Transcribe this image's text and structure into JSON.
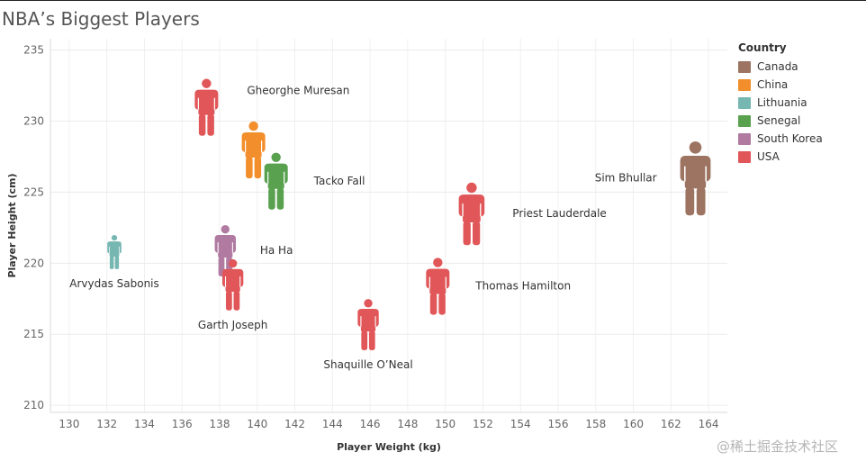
{
  "chart_data": {
    "type": "scatter",
    "title": "NBA’s Biggest Players",
    "xlabel": "Player Weight (kg)",
    "ylabel": "Player Height (cm)",
    "xlim": [
      129,
      165
    ],
    "ylim": [
      209.5,
      235.8
    ],
    "xticks": [
      130,
      132,
      134,
      136,
      138,
      140,
      142,
      144,
      146,
      148,
      150,
      152,
      154,
      156,
      158,
      160,
      162,
      164
    ],
    "yticks": [
      210,
      215,
      220,
      225,
      230,
      235
    ],
    "grid": true,
    "legend_position": "right",
    "legend_title": "Country",
    "categories": [
      "Canada",
      "China",
      "Lithuania",
      "Senegal",
      "South Korea",
      "USA"
    ],
    "colors": {
      "Canada": "#9c7461",
      "China": "#f28e2b",
      "Lithuania": "#76b7b2",
      "Senegal": "#59a14f",
      "South Korea": "#b07aa1",
      "USA": "#e15759"
    },
    "points": [
      {
        "name": "Gheorghe Muresan",
        "country": "USA",
        "x": 137.3,
        "y": 231.0,
        "size": 1.0,
        "label_side": "right-offset"
      },
      {
        "name": "",
        "country": "China",
        "x": 139.8,
        "y": 228.0,
        "size": 1.0,
        "label_side": "none"
      },
      {
        "name": "Tacko Fall",
        "country": "Senegal",
        "x": 141.0,
        "y": 225.8,
        "size": 1.0,
        "label_side": "right"
      },
      {
        "name": "Sim Bhullar",
        "country": "Canada",
        "x": 163.3,
        "y": 226.0,
        "size": 1.3,
        "label_side": "left"
      },
      {
        "name": "Priest Lauderdale",
        "country": "USA",
        "x": 151.4,
        "y": 223.5,
        "size": 1.1,
        "label_side": "right"
      },
      {
        "name": "Ha Ha",
        "country": "South Korea",
        "x": 138.3,
        "y": 220.9,
        "size": 0.9,
        "label_side": "right"
      },
      {
        "name": "Arvydas Sabonis",
        "country": "Lithuania",
        "x": 132.4,
        "y": 220.8,
        "size": 0.6,
        "label_side": "below"
      },
      {
        "name": "Garth Joseph",
        "country": "USA",
        "x": 138.7,
        "y": 218.5,
        "size": 0.9,
        "label_side": "below"
      },
      {
        "name": "Thomas Hamilton",
        "country": "USA",
        "x": 149.6,
        "y": 218.4,
        "size": 1.0,
        "label_side": "right"
      },
      {
        "name": "Shaquille O’Neal",
        "country": "USA",
        "x": 145.9,
        "y": 215.7,
        "size": 0.9,
        "label_side": "below"
      }
    ]
  },
  "watermark": "@稀土掘金技术社区"
}
